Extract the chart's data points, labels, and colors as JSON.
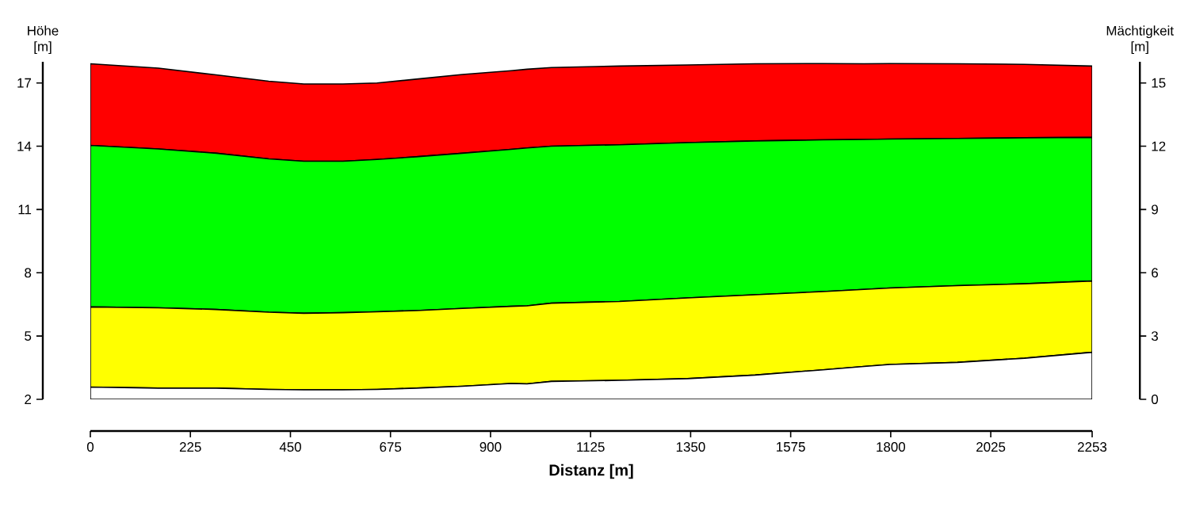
{
  "chart_data": {
    "type": "area",
    "stacked": true,
    "xlabel": "Distanz [m]",
    "ylabel": "Höhe [m]",
    "y2label": "Mächtigkeit [m]",
    "x": [
      0,
      153,
      283,
      401,
      480,
      568,
      645,
      733,
      837,
      946,
      982,
      1037,
      1190,
      1343,
      1495,
      1648,
      1740,
      1798,
      1950,
      2101,
      2253
    ],
    "series": [
      {
        "color": "#ffffff",
        "values": [
          2.58,
          2.53,
          2.53,
          2.47,
          2.45,
          2.45,
          2.47,
          2.53,
          2.62,
          2.75,
          2.73,
          2.85,
          2.9,
          2.98,
          3.15,
          3.4,
          3.56,
          3.65,
          3.75,
          3.95,
          4.23
        ]
      },
      {
        "color": "#ffff00",
        "values": [
          3.8,
          3.81,
          3.73,
          3.66,
          3.63,
          3.66,
          3.68,
          3.68,
          3.69,
          3.66,
          3.7,
          3.71,
          3.74,
          3.83,
          3.81,
          3.71,
          3.65,
          3.63,
          3.64,
          3.53,
          3.38
        ]
      },
      {
        "color": "#00ff00",
        "values": [
          7.66,
          7.53,
          7.41,
          7.27,
          7.21,
          7.18,
          7.22,
          7.29,
          7.36,
          7.44,
          7.49,
          7.44,
          7.43,
          7.36,
          7.29,
          7.19,
          7.11,
          7.06,
          6.98,
          6.92,
          6.81
        ]
      },
      {
        "color": "#ff0000",
        "values": [
          3.87,
          3.83,
          3.71,
          3.68,
          3.66,
          3.66,
          3.63,
          3.68,
          3.73,
          3.73,
          3.73,
          3.73,
          3.73,
          3.68,
          3.66,
          3.62,
          3.59,
          3.58,
          3.54,
          3.48,
          3.38
        ]
      }
    ],
    "xlim": [
      0,
      2253
    ],
    "xticks": [
      0,
      225,
      450,
      675,
      900,
      1125,
      1350,
      1575,
      1800,
      2025,
      2253
    ],
    "ylim": [
      2,
      18
    ],
    "yticks": [
      2,
      5,
      8,
      11,
      14,
      17
    ],
    "y2lim": [
      0,
      16
    ],
    "y2ticks": [
      0,
      3,
      6,
      9,
      12,
      15
    ]
  }
}
